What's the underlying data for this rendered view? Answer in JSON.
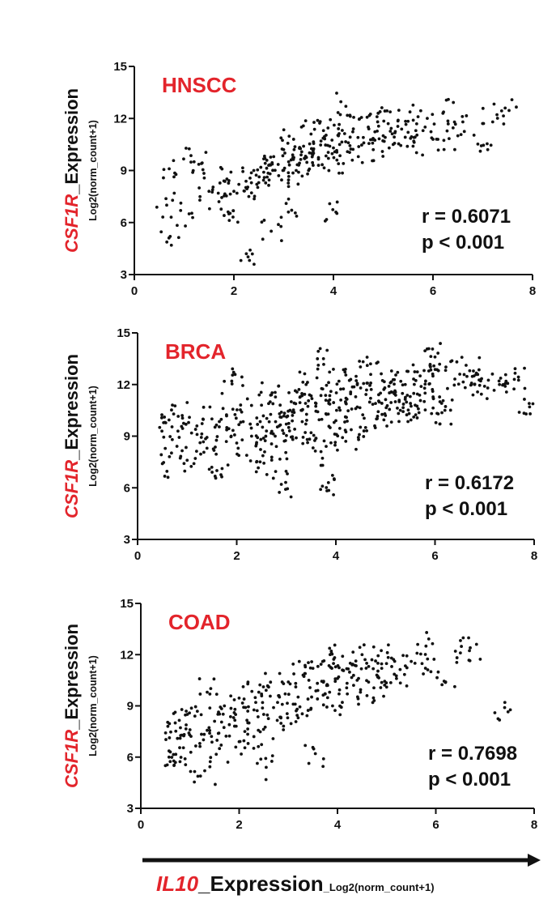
{
  "colors": {
    "accent": "#e3242b",
    "ink": "#111111",
    "points": "#111111"
  },
  "x_axis": {
    "gene": "IL10",
    "label_rest": "_Expression",
    "unit": "_Log2(norm_count+1)"
  },
  "chart_data": [
    {
      "type": "scatter",
      "title": "HNSCC",
      "xlim": [
        0,
        8
      ],
      "ylim": [
        3,
        15
      ],
      "xticks": [
        "0",
        "2",
        "4",
        "6",
        "8"
      ],
      "yticks": [
        "3",
        "6",
        "9",
        "12",
        "15"
      ],
      "ylabel_gene": "CSF1R",
      "ylabel_rest": "_Expression",
      "ylabel_unit": "Log2(norm_count+1)",
      "r_text": "r = 0.6071",
      "p_text": "p < 0.001",
      "r": 0.6071,
      "points": [
        [
          0.7,
          9.1
        ],
        [
          0.65,
          7.0
        ],
        [
          0.72,
          5.2
        ],
        [
          1.1,
          6.5
        ],
        [
          1.2,
          9.5
        ],
        [
          1.35,
          9.4
        ],
        [
          1.5,
          7.8
        ],
        [
          1.7,
          7.2
        ],
        [
          1.8,
          8.4
        ],
        [
          1.9,
          6.5
        ],
        [
          2.0,
          7.8
        ],
        [
          2.1,
          8.2
        ],
        [
          2.25,
          4.2
        ],
        [
          2.3,
          7.5
        ],
        [
          2.4,
          9.0
        ],
        [
          2.5,
          8.3
        ],
        [
          2.6,
          8.9
        ],
        [
          2.7,
          9.3
        ],
        [
          2.75,
          5.5
        ],
        [
          2.8,
          9.8
        ],
        [
          2.9,
          8.7
        ],
        [
          3.0,
          10.2
        ],
        [
          3.05,
          7.1
        ],
        [
          3.1,
          9.5
        ],
        [
          3.2,
          10.8
        ],
        [
          3.3,
          8.9
        ],
        [
          3.35,
          9.9
        ],
        [
          3.4,
          10.4
        ],
        [
          3.5,
          9.0
        ],
        [
          3.55,
          11.1
        ],
        [
          3.6,
          10.0
        ],
        [
          3.7,
          9.3
        ],
        [
          3.75,
          10.7
        ],
        [
          3.8,
          11.3
        ],
        [
          3.9,
          9.7
        ],
        [
          4.0,
          10.3
        ],
        [
          4.05,
          6.6
        ],
        [
          4.1,
          11.0
        ],
        [
          4.2,
          9.4
        ],
        [
          4.25,
          12.7
        ],
        [
          4.3,
          10.6
        ],
        [
          4.4,
          11.4
        ],
        [
          4.5,
          9.8
        ],
        [
          4.6,
          10.9
        ],
        [
          4.7,
          11.5
        ],
        [
          4.8,
          10.2
        ],
        [
          4.9,
          12.3
        ],
        [
          5.0,
          11.0
        ],
        [
          5.1,
          11.7
        ],
        [
          5.2,
          10.5
        ],
        [
          5.3,
          11.9
        ],
        [
          5.5,
          11.2
        ],
        [
          5.6,
          10.4
        ],
        [
          5.7,
          12.1
        ],
        [
          5.8,
          11.3
        ],
        [
          6.0,
          10.8
        ],
        [
          6.2,
          12.3
        ],
        [
          6.5,
          11.0
        ],
        [
          6.6,
          11.8
        ],
        [
          7.1,
          10.2
        ],
        [
          7.2,
          11.8
        ],
        [
          7.45,
          12.6
        ]
      ]
    },
    {
      "type": "scatter",
      "title": "BRCA",
      "xlim": [
        0,
        8
      ],
      "ylim": [
        3,
        15
      ],
      "xticks": [
        "0",
        "2",
        "4",
        "6",
        "8"
      ],
      "yticks": [
        "3",
        "6",
        "9",
        "12",
        "15"
      ],
      "ylabel_gene": "CSF1R",
      "ylabel_rest": "_Expression",
      "ylabel_unit": "Log2(norm_count+1)",
      "r_text": "r = 0.6172",
      "p_text": "p < 0.001",
      "r": 0.6172,
      "points": [
        [
          0.5,
          7.4
        ],
        [
          0.55,
          9.8
        ],
        [
          0.7,
          8.8
        ],
        [
          0.9,
          10.2
        ],
        [
          1.0,
          7.6
        ],
        [
          1.2,
          9.1
        ],
        [
          1.4,
          8.3
        ],
        [
          1.5,
          10.0
        ],
        [
          1.6,
          7.0
        ],
        [
          1.8,
          9.5
        ],
        [
          1.9,
          12.2
        ],
        [
          2.0,
          8.6
        ],
        [
          2.1,
          10.4
        ],
        [
          2.3,
          9.0
        ],
        [
          2.4,
          7.5
        ],
        [
          2.5,
          10.8
        ],
        [
          2.6,
          9.3
        ],
        [
          2.7,
          11.4
        ],
        [
          2.8,
          8.4
        ],
        [
          2.9,
          10.1
        ],
        [
          2.9,
          6.2
        ],
        [
          3.0,
          9.7
        ],
        [
          3.1,
          11.0
        ],
        [
          3.2,
          8.9
        ],
        [
          3.3,
          10.5
        ],
        [
          3.4,
          12.0
        ],
        [
          3.5,
          9.2
        ],
        [
          3.6,
          10.9
        ],
        [
          3.7,
          8.1
        ],
        [
          3.75,
          13.5
        ],
        [
          3.8,
          10.3
        ],
        [
          3.85,
          6.3
        ],
        [
          3.9,
          11.6
        ],
        [
          4.0,
          9.9
        ],
        [
          4.1,
          11.1
        ],
        [
          4.2,
          8.7
        ],
        [
          4.3,
          12.3
        ],
        [
          4.4,
          10.6
        ],
        [
          4.5,
          11.8
        ],
        [
          4.6,
          9.5
        ],
        [
          4.7,
          13.2
        ],
        [
          4.8,
          10.9
        ],
        [
          4.9,
          11.5
        ],
        [
          5.0,
          10.2
        ],
        [
          5.1,
          12.1
        ],
        [
          5.2,
          11.0
        ],
        [
          5.3,
          10.5
        ],
        [
          5.4,
          12.0
        ],
        [
          5.5,
          11.3
        ],
        [
          5.6,
          10.8
        ],
        [
          5.7,
          12.5
        ],
        [
          5.8,
          11.5
        ],
        [
          5.9,
          13.1
        ],
        [
          6.0,
          13.6
        ],
        [
          6.1,
          11.0
        ],
        [
          6.2,
          10.5
        ],
        [
          6.5,
          12.6
        ],
        [
          6.7,
          12.8
        ],
        [
          6.8,
          12.0
        ],
        [
          7.0,
          11.9
        ],
        [
          7.3,
          12.0
        ],
        [
          7.6,
          12.3
        ],
        [
          7.9,
          10.9
        ]
      ]
    },
    {
      "type": "scatter",
      "title": "COAD",
      "xlim": [
        0,
        8
      ],
      "ylim": [
        3,
        15
      ],
      "xticks": [
        "0",
        "2",
        "4",
        "6",
        "8"
      ],
      "yticks": [
        "3",
        "6",
        "9",
        "12",
        "15"
      ],
      "ylabel_gene": "CSF1R",
      "ylabel_rest": "_Expression",
      "ylabel_unit": "Log2(norm_count+1)",
      "r_text": "r = 0.7698",
      "p_text": "p < 0.001",
      "r": 0.7698,
      "points": [
        [
          0.5,
          5.5
        ],
        [
          0.55,
          7.8
        ],
        [
          0.6,
          6.3
        ],
        [
          0.7,
          8.0
        ],
        [
          0.8,
          7.1
        ],
        [
          0.9,
          5.9
        ],
        [
          1.0,
          7.6
        ],
        [
          1.1,
          8.4
        ],
        [
          1.2,
          6.8
        ],
        [
          1.3,
          5.2
        ],
        [
          1.35,
          9.8
        ],
        [
          1.4,
          7.4
        ],
        [
          1.5,
          8.1
        ],
        [
          1.6,
          6.5
        ],
        [
          1.7,
          9.0
        ],
        [
          1.8,
          7.9
        ],
        [
          1.9,
          8.6
        ],
        [
          2.0,
          6.9
        ],
        [
          2.1,
          9.4
        ],
        [
          2.2,
          8.0
        ],
        [
          2.3,
          7.2
        ],
        [
          2.4,
          9.8
        ],
        [
          2.5,
          8.5
        ],
        [
          2.55,
          5.4
        ],
        [
          2.6,
          10.1
        ],
        [
          2.7,
          8.9
        ],
        [
          2.8,
          9.6
        ],
        [
          2.9,
          7.6
        ],
        [
          3.0,
          10.4
        ],
        [
          3.1,
          9.1
        ],
        [
          3.2,
          8.3
        ],
        [
          3.3,
          10.8
        ],
        [
          3.4,
          9.4
        ],
        [
          3.5,
          11.2
        ],
        [
          3.55,
          6.2
        ],
        [
          3.6,
          9.9
        ],
        [
          3.7,
          11.6
        ],
        [
          3.8,
          10.2
        ],
        [
          3.85,
          12.0
        ],
        [
          3.9,
          9.0
        ],
        [
          4.0,
          10.6
        ],
        [
          4.1,
          11.1
        ],
        [
          4.2,
          9.7
        ],
        [
          4.3,
          11.4
        ],
        [
          4.4,
          10.5
        ],
        [
          4.5,
          12.0
        ],
        [
          4.6,
          9.6
        ],
        [
          4.7,
          11.7
        ],
        [
          4.8,
          10.8
        ],
        [
          4.9,
          11.2
        ],
        [
          5.0,
          10.1
        ],
        [
          5.1,
          11.8
        ],
        [
          5.2,
          10.6
        ],
        [
          5.5,
          11.6
        ],
        [
          5.8,
          12.5
        ],
        [
          5.9,
          11.0
        ],
        [
          6.2,
          10.4
        ],
        [
          6.5,
          12.1
        ],
        [
          6.7,
          12.4
        ],
        [
          7.4,
          8.9
        ]
      ]
    }
  ]
}
